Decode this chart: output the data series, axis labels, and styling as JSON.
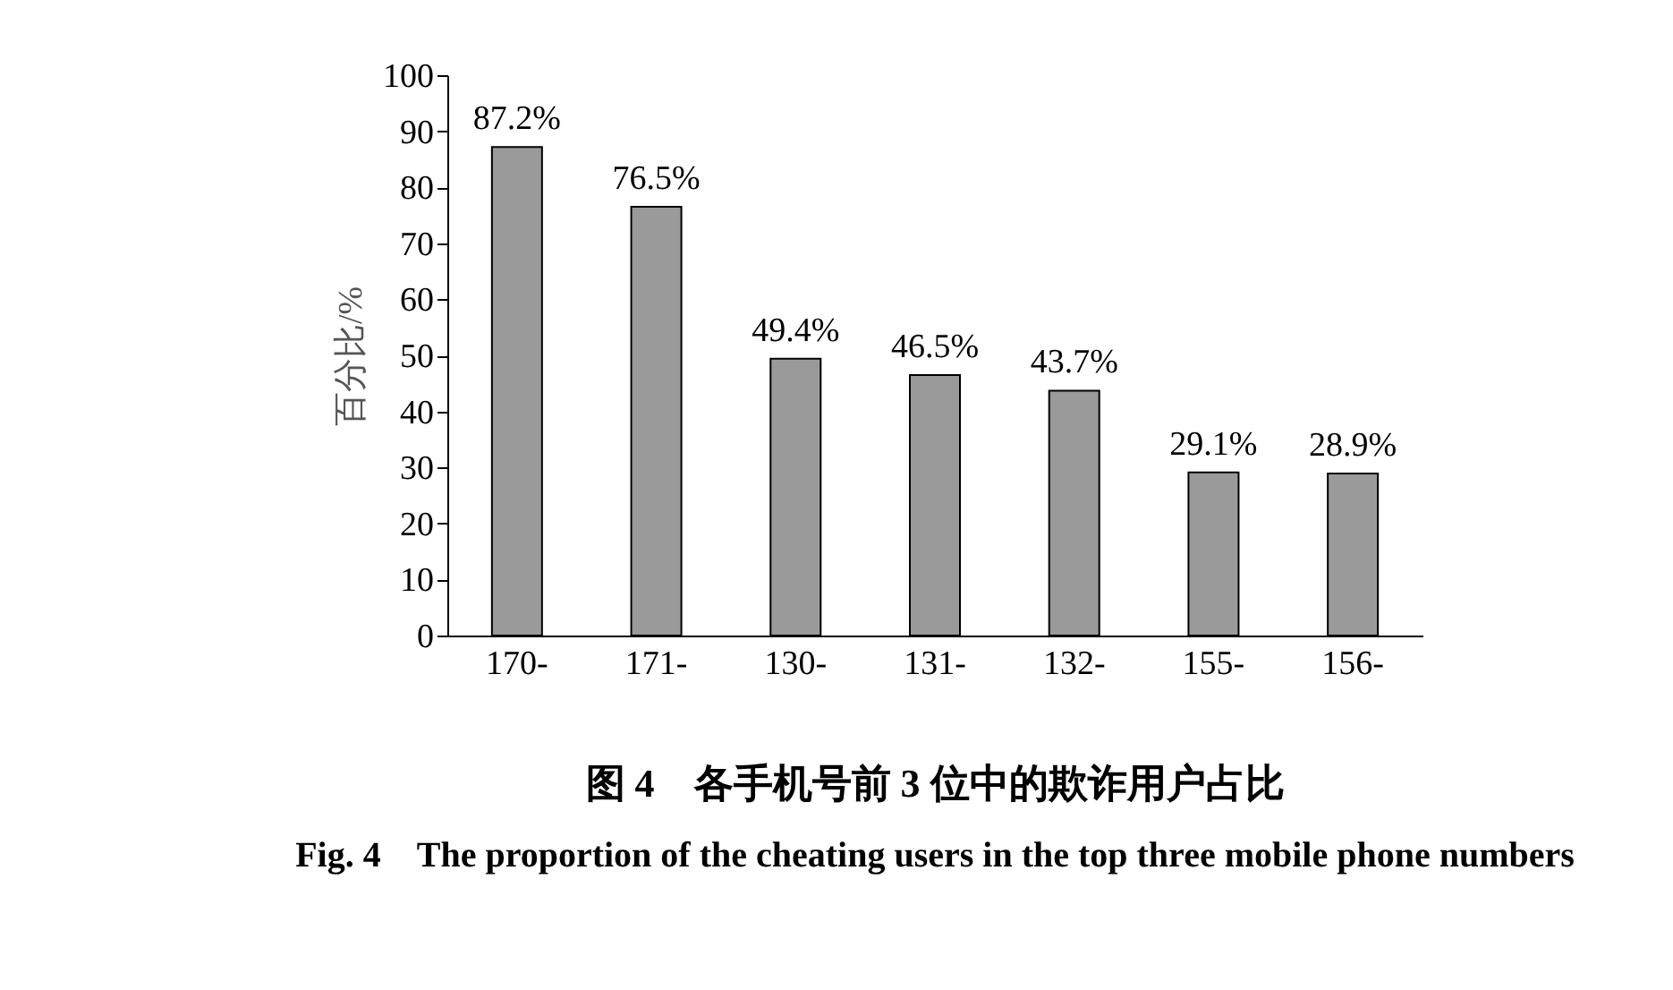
{
  "chart_data": {
    "type": "bar",
    "title": "图 4　各手机号前 3 位中的欺诈用户占比",
    "subtitle": "Fig. 4　The proportion of the cheating users in the top three mobile phone numbers",
    "ylabel": "百分比/%",
    "categories": [
      "170-",
      "171-",
      "130-",
      "131-",
      "132-",
      "155-",
      "156-"
    ],
    "values": [
      87.2,
      76.5,
      49.4,
      46.5,
      43.7,
      29.1,
      28.9
    ],
    "value_labels": [
      "87.2%",
      "76.5%",
      "49.4%",
      "46.5%",
      "43.7%",
      "29.1%",
      "28.9%"
    ],
    "color": "#9a9a9a",
    "ylim": [
      0,
      100
    ],
    "yticks": [
      0,
      10,
      20,
      30,
      40,
      50,
      60,
      70,
      80,
      90,
      100
    ],
    "grid": false
  }
}
